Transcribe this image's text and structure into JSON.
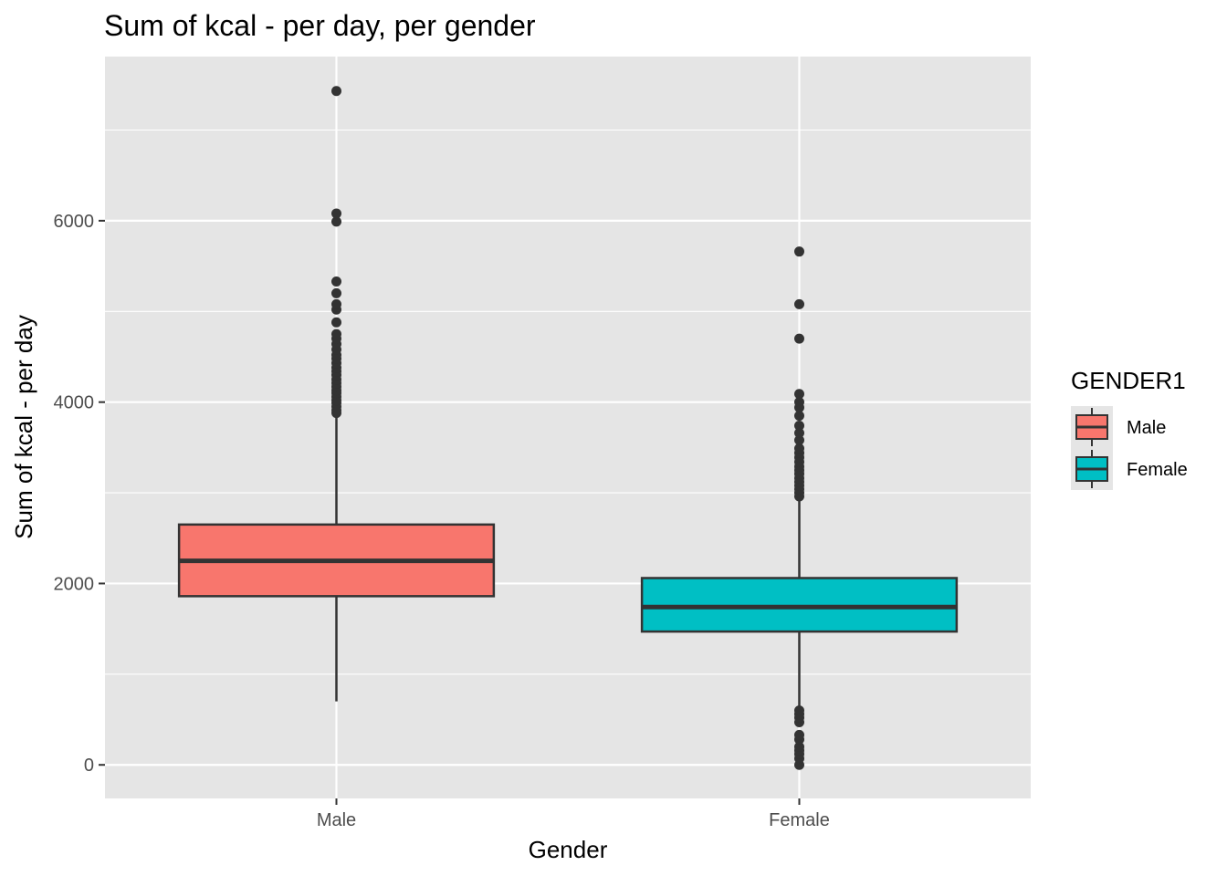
{
  "chart_data": {
    "type": "boxplot",
    "title": "Sum of kcal - per day, per gender",
    "xlabel": "Gender",
    "ylabel": "Sum of kcal - per day",
    "categories": [
      "Male",
      "Female"
    ],
    "ylim": [
      -370,
      7810
    ],
    "yticks": [
      0,
      2000,
      4000,
      6000
    ],
    "ytick_labels": [
      "0",
      "2000",
      "4000",
      "6000"
    ],
    "grid": true,
    "legend": {
      "title": "GENDER1",
      "position": "right",
      "entries": [
        "Male",
        "Female"
      ]
    },
    "series": [
      {
        "name": "Male",
        "color": "#F8766D",
        "whisker_low": 700,
        "q1": 1860,
        "median": 2250,
        "q3": 2650,
        "whisker_high": 3860,
        "outliers": [
          3880,
          3910,
          3950,
          3990,
          4020,
          4060,
          4100,
          4130,
          4170,
          4210,
          4250,
          4300,
          4340,
          4380,
          4430,
          4480,
          4520,
          4580,
          4640,
          4700,
          4750,
          4880,
          5020,
          5080,
          5200,
          5330,
          5990,
          6080,
          7430
        ]
      },
      {
        "name": "Female",
        "color": "#00BFC4",
        "whisker_low": 620,
        "q1": 1470,
        "median": 1740,
        "q3": 2060,
        "whisker_high": 2940,
        "outliers": [
          0,
          70,
          120,
          160,
          200,
          280,
          330,
          470,
          520,
          560,
          600,
          2960,
          3000,
          3040,
          3080,
          3120,
          3160,
          3210,
          3250,
          3290,
          3340,
          3390,
          3440,
          3490,
          3580,
          3660,
          3740,
          3850,
          3940,
          4000,
          4090,
          4700,
          5080,
          5660
        ]
      }
    ]
  }
}
